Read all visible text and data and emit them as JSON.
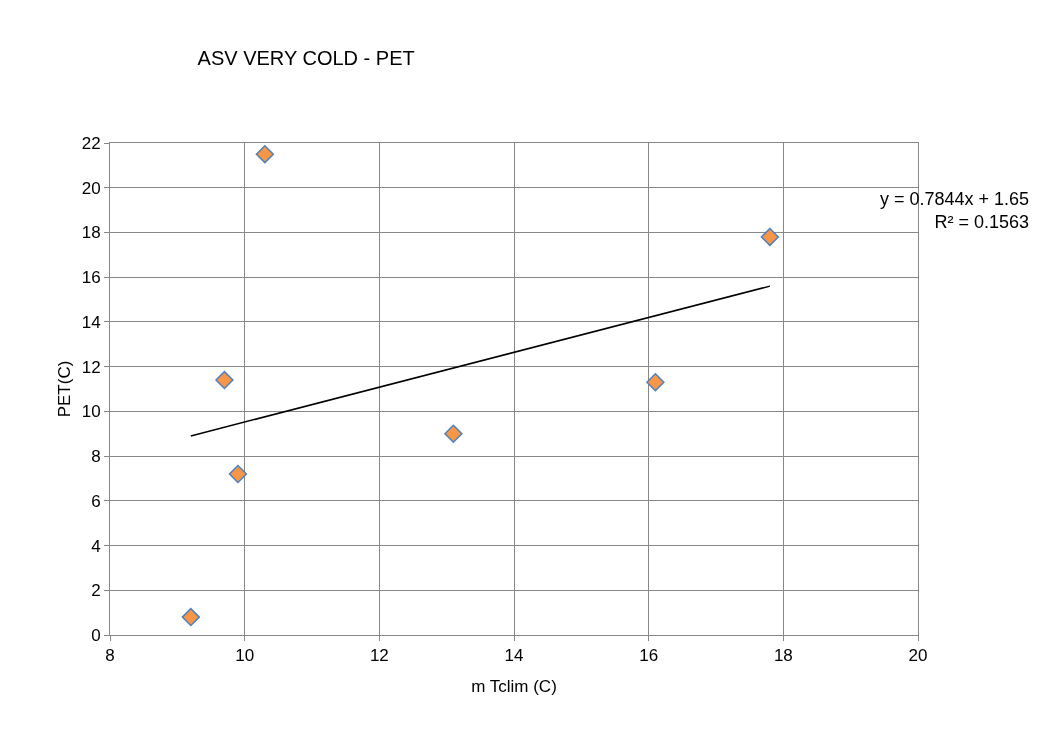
{
  "chart_data": {
    "type": "scatter",
    "title": "ASV VERY COLD - PET",
    "xlabel": "m Tclim (C)",
    "ylabel": "PET(C)",
    "xlim": [
      8,
      20
    ],
    "xticks": [
      8,
      10,
      12,
      14,
      16,
      18,
      20
    ],
    "ylim": [
      0,
      22
    ],
    "yticks": [
      0,
      2,
      4,
      6,
      8,
      10,
      12,
      14,
      16,
      18,
      20,
      22
    ],
    "grid": true,
    "series": [
      {
        "color": "#f79646",
        "marker": "diamond",
        "x": [
          9.2,
          9.7,
          9.9,
          10.3,
          13.1,
          16.1,
          17.8
        ],
        "values": [
          0.8,
          11.4,
          7.2,
          21.5,
          9.0,
          11.3,
          17.8
        ]
      },
      {
        "type": "line",
        "color": "#000000",
        "x": [
          9.2,
          17.8
        ],
        "values": [
          8.9,
          15.6
        ],
        "marker": "none",
        "line_style": "solid"
      }
    ],
    "annotations": [
      "y = 0.7844x + 1.65\nR² = 0.1563"
    ]
  }
}
